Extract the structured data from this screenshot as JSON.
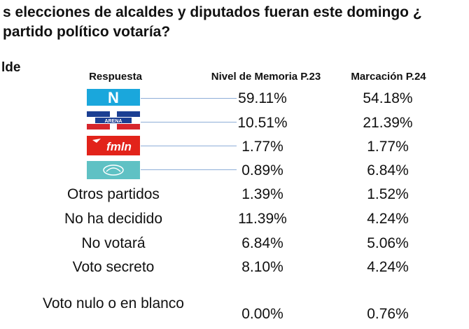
{
  "title_line1": "s elecciones de alcaldes y diputados fueran este domingo ¿",
  "title_line2": "partido político votaría?",
  "side_label": "lde",
  "chart_data": {
    "type": "table",
    "columns": [
      "Respuesta",
      "Nivel de Memoria P.23",
      "Marcación  P.24"
    ],
    "logo_rows": [
      {
        "name": "nuevas-ideas-logo",
        "text": "N",
        "color": "#1aa7dc",
        "memoria": "59.11%",
        "marcacion": "54.18%"
      },
      {
        "name": "arena-logo",
        "text": "ARENA",
        "color": "#1b3f93",
        "memoria": "10.51%",
        "marcacion": "21.39%"
      },
      {
        "name": "fmln-logo",
        "text": "fmln",
        "color": "#e2231a",
        "memoria": "1.77%",
        "marcacion": "1.77%"
      },
      {
        "name": "gana-logo",
        "text": "",
        "color": "#5fc1c4",
        "memoria": "0.89%",
        "marcacion": "6.84%"
      }
    ],
    "text_rows": [
      {
        "label": "Otros partidos",
        "memoria": "1.39%",
        "marcacion": "1.52%"
      },
      {
        "label": "No ha decidido",
        "memoria": "11.39%",
        "marcacion": "4.24%"
      },
      {
        "label": "No votará",
        "memoria": "6.84%",
        "marcacion": "5.06%"
      },
      {
        "label": "Voto secreto",
        "memoria": "8.10%",
        "marcacion": "4.24%"
      },
      {
        "label": "Voto nulo o en blanco",
        "memoria": "0.00%",
        "marcacion": "0.76%"
      }
    ]
  }
}
